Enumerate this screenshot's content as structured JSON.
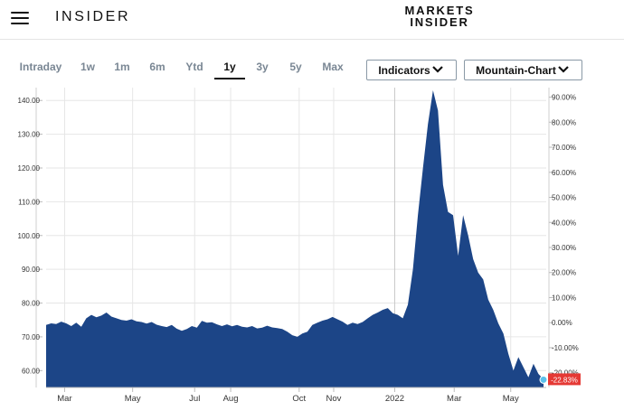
{
  "header": {
    "brand": "INSIDER",
    "logo_line1": "MARKETS",
    "logo_line2": "INSIDER",
    "menu_icon": "hamburger-menu-icon"
  },
  "range_tabs": [
    {
      "label": "Intraday",
      "active": false
    },
    {
      "label": "1w",
      "active": false
    },
    {
      "label": "1m",
      "active": false
    },
    {
      "label": "6m",
      "active": false
    },
    {
      "label": "Ytd",
      "active": false
    },
    {
      "label": "1y",
      "active": true
    },
    {
      "label": "3y",
      "active": false
    },
    {
      "label": "5y",
      "active": false
    },
    {
      "label": "Max",
      "active": false
    }
  ],
  "controls": {
    "indicators_label": "Indicators",
    "chart_type_label": "Mountain-Chart",
    "chevron_icon": "chevron-down-icon"
  },
  "colors": {
    "area_fill": "#1c4587",
    "grid": "#e6e6e6",
    "badge": "#e53935",
    "marker": "#5bc0eb"
  },
  "chart_data": {
    "type": "area",
    "title": "",
    "xlabel": "",
    "ylabel": "",
    "ylim": [
      55,
      143
    ],
    "y_ticks": [
      "60.00",
      "70.00",
      "80.00",
      "90.00",
      "100.00",
      "110.00",
      "120.00",
      "130.00",
      "140.00"
    ],
    "y2_ticks": [
      "-20.00%",
      "-10.00%",
      "0.00%",
      "10.00%",
      "20.00%",
      "30.00%",
      "40.00%",
      "50.00%",
      "60.00%",
      "70.00%",
      "80.00%",
      "90.00%"
    ],
    "x_ticks": [
      "Mar",
      "May",
      "Jul",
      "Aug",
      "Oct",
      "Nov",
      "2022",
      "Mar",
      "May"
    ],
    "last_change_label": "-22.83%",
    "series": [
      {
        "values": [
          73.5,
          74,
          73.8,
          74.5,
          74,
          73.2,
          74.2,
          73,
          75.5,
          76.5,
          75.8,
          76.3,
          77.2,
          76,
          75.5,
          75,
          74.8,
          75.2,
          74.6,
          74.4,
          73.9,
          74.4,
          73.6,
          73.2,
          72.9,
          73.5,
          72.4,
          71.8,
          72.3,
          73.2,
          72.7,
          74.7,
          74.2,
          74.3,
          73.7,
          73.2,
          73.7,
          73.1,
          73.5,
          73,
          72.8,
          73.2,
          72.5,
          72.7,
          73.3,
          72.8,
          72.6,
          72.3,
          71.5,
          70.5,
          70,
          71,
          71.5,
          73.5,
          74.2,
          74.8,
          75.2,
          75.9,
          75.2,
          74.5,
          73.5,
          74.2,
          73.8,
          74.4,
          75.5,
          76.5,
          77.2,
          78,
          78.5,
          77,
          76.5,
          75.5,
          79.5,
          90,
          106,
          120,
          133,
          143,
          137,
          115,
          107,
          106,
          94,
          106,
          100,
          93,
          89,
          87,
          81,
          78,
          74,
          71,
          65,
          60,
          64,
          61,
          58,
          62,
          59,
          57.5
        ]
      }
    ]
  }
}
